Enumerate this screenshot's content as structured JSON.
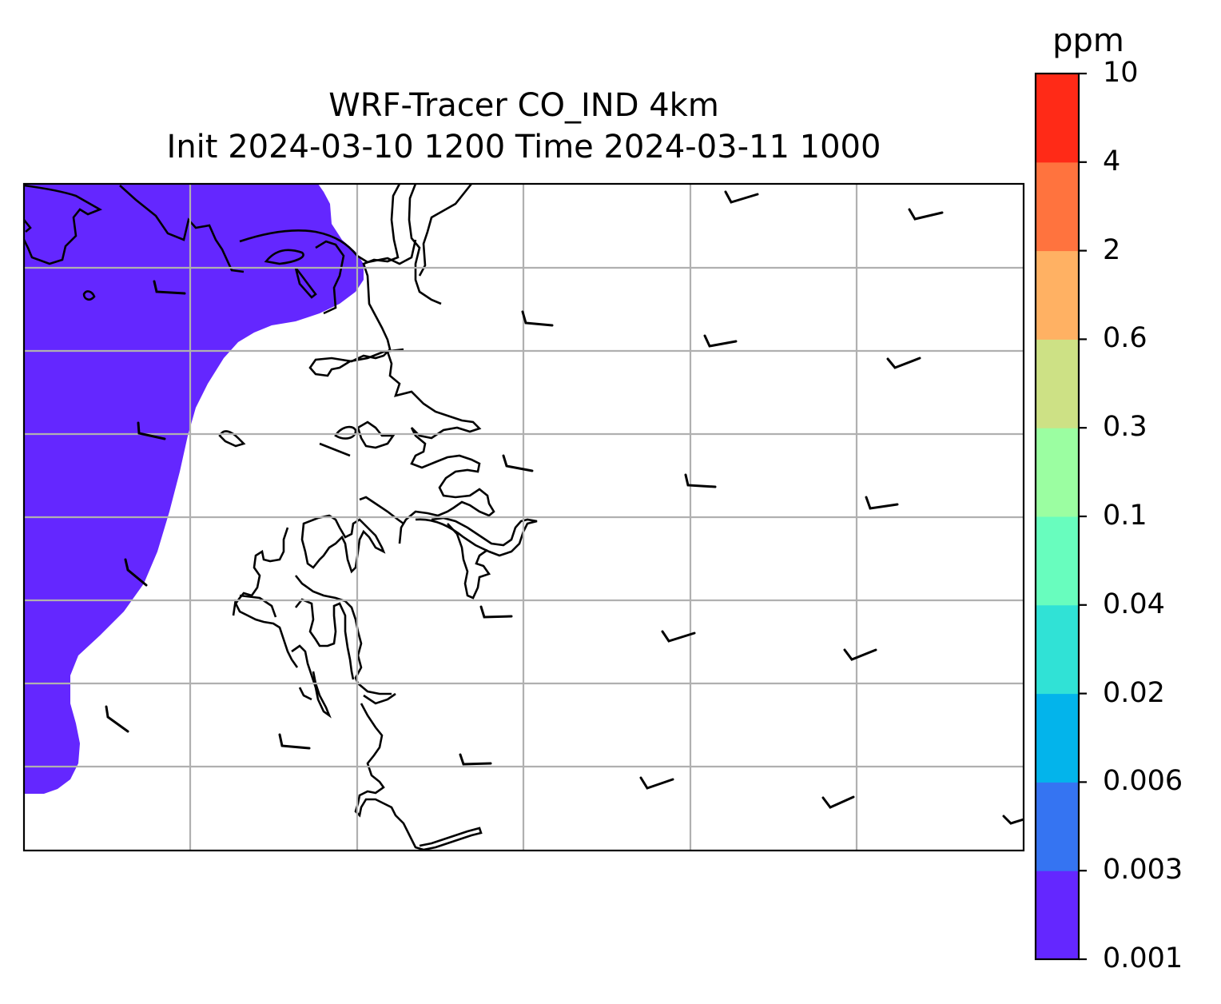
{
  "title": {
    "line1": "WRF-Tracer CO_IND 4km",
    "line2": "Init 2024-03-10 1200 Time 2024-03-11 1000"
  },
  "colorbar": {
    "unit": "ppm",
    "levels": [
      "0.001",
      "0.003",
      "0.006",
      "0.02",
      "0.04",
      "0.1",
      "0.3",
      "0.6",
      "2",
      "4",
      "10"
    ],
    "colors": [
      "#6427ff",
      "#3574f2",
      "#03b4eb",
      "#30e2d6",
      "#68fdbe",
      "#9bfea1",
      "#cde185",
      "#ffb163",
      "#ff733e",
      "#ff2a17"
    ]
  },
  "map": {
    "filled_class": "0.001-0.003 ppm",
    "fill_color": "#6427ff",
    "coastline_color": "#000000",
    "grid_color": "#b0b0b0"
  }
}
